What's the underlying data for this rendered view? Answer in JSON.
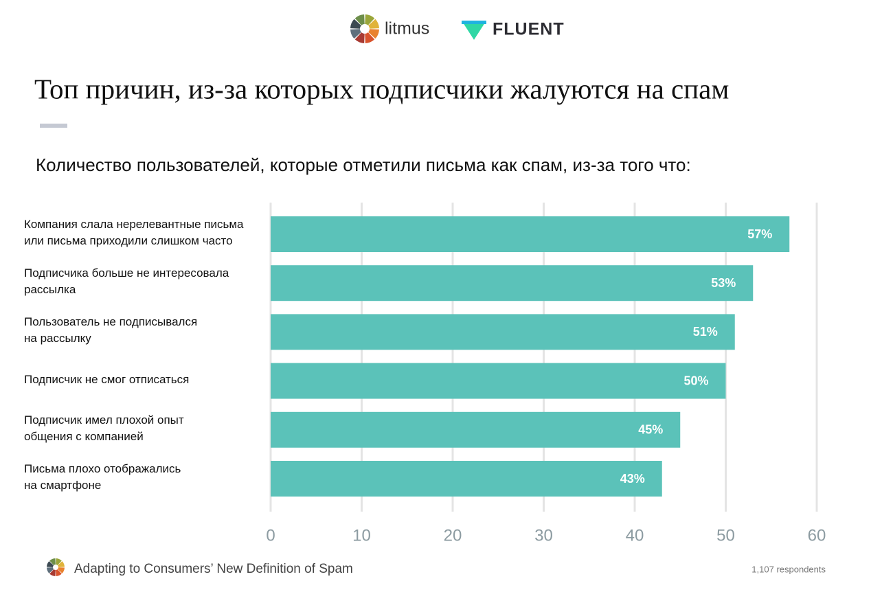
{
  "brand": {
    "logos": [
      "litmus",
      "FLUENT"
    ]
  },
  "chart_data": {
    "type": "bar",
    "orientation": "horizontal",
    "title": "Топ причин, из-за которых подписчики жалуются на спам",
    "subtitle": "Количество пользователей, которые отметили письма как спам, из-за того что:",
    "categories": [
      "Компания слала нерелевантные письма\nили письма приходили слишком часто",
      "Подписчика больше не интересовала\nрассылка",
      "Пользователь не подписывался\nна рассылку",
      "Подписчик не смог отписаться",
      "Подписчик имел плохой опыт\nобщения с компанией",
      "Письма плохо отображались\nна смартфоне"
    ],
    "values": [
      57,
      53,
      51,
      50,
      45,
      43
    ],
    "value_labels": [
      "57%",
      "53%",
      "51%",
      "50%",
      "45%",
      "43%"
    ],
    "color": "#5bc2b9",
    "xlim": [
      0,
      60
    ],
    "xticks": [
      0,
      10,
      20,
      30,
      40,
      50,
      60
    ],
    "grid": true
  },
  "footer": {
    "source": "Adapting to Consumers’ New Definition of Spam",
    "note": "1,107 respondents"
  }
}
